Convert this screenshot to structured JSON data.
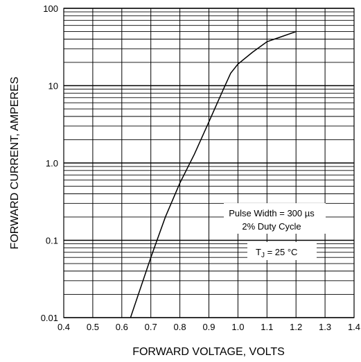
{
  "chart_data": {
    "type": "line",
    "x_scale": "linear",
    "y_scale": "log",
    "xlim": [
      0.4,
      1.4
    ],
    "ylim": [
      0.01,
      100
    ],
    "xlabel": "FORWARD VOLTAGE, VOLTS",
    "ylabel": "FORWARD CURRENT, AMPERES",
    "x_ticks": [
      "0.4",
      "0.5",
      "0.6",
      "0.7",
      "0.8",
      "0.9",
      "1.0",
      "1.1",
      "1.2",
      "1.3",
      "1.4"
    ],
    "y_ticks": [
      "0.01",
      "0.1",
      "1.0",
      "10",
      "100"
    ],
    "grid": true,
    "annotations": {
      "pulse_width": "Pulse Width = 300 µs",
      "duty_cycle": "2% Duty Cycle",
      "tj_main": "T",
      "tj_sub": "J",
      "tj_rest": " = 25 °C"
    },
    "series": [
      {
        "x": [
          0.63,
          0.7,
          0.75,
          0.8,
          0.85,
          0.9,
          0.95,
          0.975,
          1.0,
          1.05,
          1.1,
          1.15,
          1.2
        ],
        "y": [
          0.01,
          0.06,
          0.2,
          0.55,
          1.3,
          3.4,
          9.0,
          14.5,
          19.0,
          27.0,
          37.0,
          43.0,
          50.0
        ]
      }
    ]
  }
}
